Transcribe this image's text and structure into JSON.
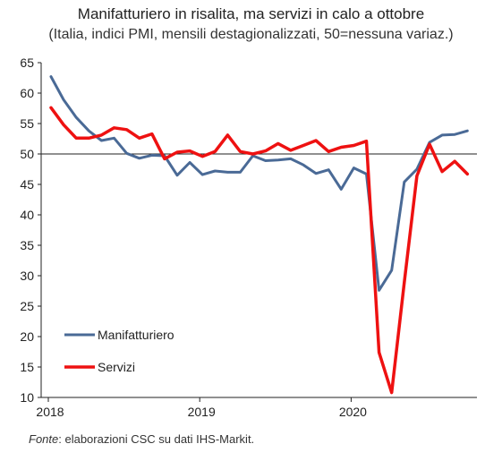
{
  "chart_data": {
    "type": "line",
    "title": "Manifatturiero in risalita, ma servizi in calo a ottobre",
    "subtitle": "(Italia, indici PMI, mensili destagionalizzati, 50=nessuna variaz.)",
    "ylim": [
      10,
      65
    ],
    "yticks": [
      "10",
      "15",
      "20",
      "25",
      "30",
      "35",
      "40",
      "45",
      "50",
      "55",
      "60",
      "65"
    ],
    "xticks": [
      "2018",
      "2019",
      "2020"
    ],
    "reference_line": 50,
    "months": [
      "2018-01",
      "2018-02",
      "2018-03",
      "2018-04",
      "2018-05",
      "2018-06",
      "2018-07",
      "2018-08",
      "2018-09",
      "2018-10",
      "2018-11",
      "2018-12",
      "2019-01",
      "2019-02",
      "2019-03",
      "2019-04",
      "2019-05",
      "2019-06",
      "2019-07",
      "2019-08",
      "2019-09",
      "2019-10",
      "2019-11",
      "2019-12",
      "2020-01",
      "2020-02",
      "2020-03",
      "2020-04",
      "2020-05",
      "2020-06",
      "2020-07",
      "2020-08",
      "2020-09",
      "2020-10"
    ],
    "series": [
      {
        "name": "Manifatturiero",
        "color": "#4a6a96",
        "values": [
          62.7,
          58.9,
          56.0,
          53.8,
          52.2,
          52.6,
          50.1,
          49.3,
          49.8,
          49.7,
          46.5,
          48.6,
          46.6,
          47.2,
          47.0,
          47.0,
          49.7,
          48.9,
          49.0,
          49.2,
          48.2,
          46.8,
          47.4,
          44.2,
          47.7,
          46.7,
          27.6,
          30.9,
          45.4,
          47.5,
          51.9,
          53.1,
          53.2,
          53.8
        ]
      },
      {
        "name": "Servizi",
        "color": "#ee1111",
        "values": [
          57.6,
          54.8,
          52.6,
          52.6,
          53.1,
          54.3,
          54.0,
          52.6,
          53.3,
          49.2,
          50.3,
          50.5,
          49.6,
          50.4,
          53.1,
          50.4,
          50.0,
          50.5,
          51.7,
          50.6,
          51.4,
          52.2,
          50.4,
          51.1,
          51.4,
          52.1,
          17.4,
          10.8,
          28.9,
          46.4,
          51.6,
          47.1,
          48.8,
          46.7
        ]
      }
    ]
  },
  "source": {
    "label": "Fonte",
    "text": ": elaborazioni CSC su dati IHS-Markit."
  }
}
